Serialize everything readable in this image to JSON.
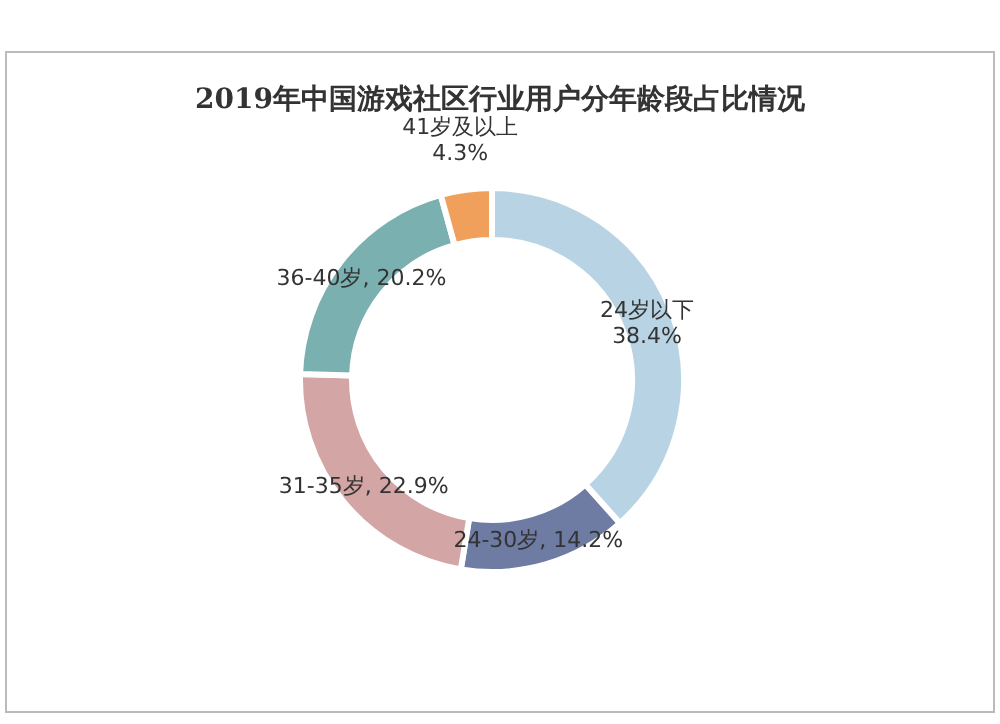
{
  "chart_data": {
    "type": "donut",
    "title": "2019年中国游戏社区行业用户分年龄段占比情况",
    "categories": [
      "24岁以下",
      "24-30岁",
      "31-35岁",
      "36-40岁",
      "41岁及以上"
    ],
    "values": [
      38.4,
      14.2,
      22.9,
      20.2,
      4.3
    ],
    "colors": [
      "#b8d4e4",
      "#6e7ba3",
      "#d4a5a5",
      "#7ab0b0",
      "#f0a05a"
    ],
    "value_labels": [
      "38.4%",
      "14.2%",
      "22.9%",
      "20.2%",
      "4.3%"
    ],
    "legend": false
  }
}
